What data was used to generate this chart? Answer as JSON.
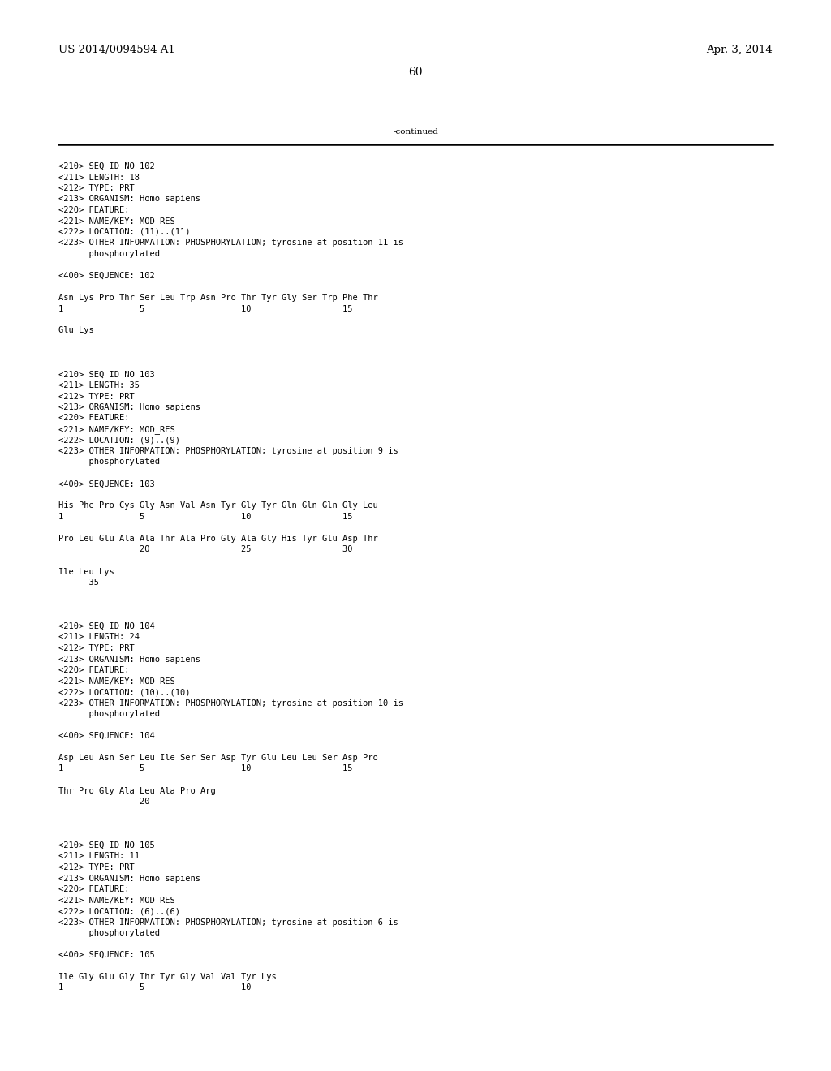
{
  "bg_color": "#ffffff",
  "header_left": "US 2014/0094594 A1",
  "header_right": "Apr. 3, 2014",
  "page_number": "60",
  "continued_text": "-continued",
  "content": [
    "<210> SEQ ID NO 102",
    "<211> LENGTH: 18",
    "<212> TYPE: PRT",
    "<213> ORGANISM: Homo sapiens",
    "<220> FEATURE:",
    "<221> NAME/KEY: MOD_RES",
    "<222> LOCATION: (11)..(11)",
    "<223> OTHER INFORMATION: PHOSPHORYLATION; tyrosine at position 11 is",
    "      phosphorylated",
    "",
    "<400> SEQUENCE: 102",
    "",
    "Asn Lys Pro Thr Ser Leu Trp Asn Pro Thr Tyr Gly Ser Trp Phe Thr",
    "1               5                   10                  15",
    "",
    "Glu Lys",
    "",
    "",
    "",
    "<210> SEQ ID NO 103",
    "<211> LENGTH: 35",
    "<212> TYPE: PRT",
    "<213> ORGANISM: Homo sapiens",
    "<220> FEATURE:",
    "<221> NAME/KEY: MOD_RES",
    "<222> LOCATION: (9)..(9)",
    "<223> OTHER INFORMATION: PHOSPHORYLATION; tyrosine at position 9 is",
    "      phosphorylated",
    "",
    "<400> SEQUENCE: 103",
    "",
    "His Phe Pro Cys Gly Asn Val Asn Tyr Gly Tyr Gln Gln Gln Gly Leu",
    "1               5                   10                  15",
    "",
    "Pro Leu Glu Ala Ala Thr Ala Pro Gly Ala Gly His Tyr Glu Asp Thr",
    "                20                  25                  30",
    "",
    "Ile Leu Lys",
    "      35",
    "",
    "",
    "",
    "<210> SEQ ID NO 104",
    "<211> LENGTH: 24",
    "<212> TYPE: PRT",
    "<213> ORGANISM: Homo sapiens",
    "<220> FEATURE:",
    "<221> NAME/KEY: MOD_RES",
    "<222> LOCATION: (10)..(10)",
    "<223> OTHER INFORMATION: PHOSPHORYLATION; tyrosine at position 10 is",
    "      phosphorylated",
    "",
    "<400> SEQUENCE: 104",
    "",
    "Asp Leu Asn Ser Leu Ile Ser Ser Asp Tyr Glu Leu Leu Ser Asp Pro",
    "1               5                   10                  15",
    "",
    "Thr Pro Gly Ala Leu Ala Pro Arg",
    "                20",
    "",
    "",
    "",
    "<210> SEQ ID NO 105",
    "<211> LENGTH: 11",
    "<212> TYPE: PRT",
    "<213> ORGANISM: Homo sapiens",
    "<220> FEATURE:",
    "<221> NAME/KEY: MOD_RES",
    "<222> LOCATION: (6)..(6)",
    "<223> OTHER INFORMATION: PHOSPHORYLATION; tyrosine at position 6 is",
    "      phosphorylated",
    "",
    "<400> SEQUENCE: 105",
    "",
    "Ile Gly Glu Gly Thr Tyr Gly Val Val Tyr Lys",
    "1               5                   10"
  ],
  "font_size_header": 9.5,
  "font_size_content": 7.5,
  "font_size_page_num": 10.0,
  "font_size_continued": 7.5
}
